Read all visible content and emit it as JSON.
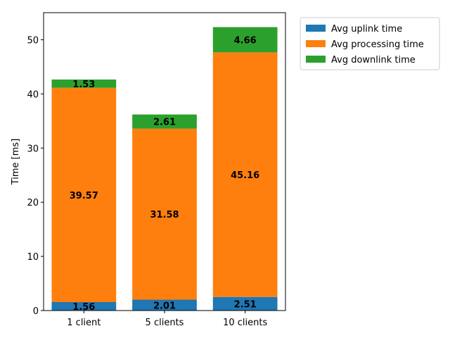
{
  "chart_data": {
    "type": "bar",
    "stacked": true,
    "categories": [
      "1 client",
      "5 clients",
      "10 clients"
    ],
    "series": [
      {
        "name": "Avg uplink time",
        "values": [
          1.56,
          2.01,
          2.51
        ],
        "color": "#1f77b4"
      },
      {
        "name": "Avg processing time",
        "values": [
          39.57,
          31.58,
          45.16
        ],
        "color": "#ff7f0e"
      },
      {
        "name": "Avg downlink time",
        "values": [
          1.53,
          2.61,
          4.66
        ],
        "color": "#2ca02c"
      }
    ],
    "data_labels": [
      [
        "1.56",
        "2.01",
        "2.51"
      ],
      [
        "39.57",
        "31.58",
        "45.16"
      ],
      [
        "1.53",
        "2.61",
        "4.66"
      ]
    ],
    "ylabel": "Time [ms]",
    "xlabel": "",
    "title": "",
    "ylim": [
      0,
      55
    ],
    "yticks": [
      0,
      10,
      20,
      30,
      40,
      50
    ],
    "grid": false,
    "legend_position": "outside-top-right"
  }
}
